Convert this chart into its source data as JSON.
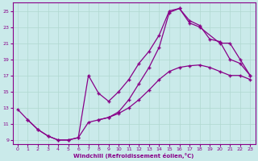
{
  "xlabel": "Windchill (Refroidissement éolien,°C)",
  "background_color": "#caeaea",
  "grid_color": "#b0d8d0",
  "line_color": "#880088",
  "xlim": [
    -0.5,
    23.5
  ],
  "ylim": [
    8.5,
    26
  ],
  "xticks": [
    0,
    1,
    2,
    3,
    4,
    5,
    6,
    7,
    8,
    9,
    10,
    11,
    12,
    13,
    14,
    15,
    16,
    17,
    18,
    19,
    20,
    21,
    22,
    23
  ],
  "yticks": [
    9,
    11,
    13,
    15,
    17,
    19,
    21,
    23,
    25
  ],
  "line1_x": [
    0,
    1,
    2,
    3,
    4,
    5,
    6,
    7,
    8,
    9,
    10,
    11,
    12,
    13,
    14,
    15,
    16,
    17,
    18,
    19,
    20,
    21,
    22,
    23
  ],
  "line1_y": [
    12.8,
    11.5,
    10.3,
    9.5,
    9.0,
    9.0,
    9.3,
    11.2,
    11.5,
    11.8,
    12.3,
    13.0,
    14.0,
    15.2,
    16.5,
    17.5,
    18.0,
    18.2,
    18.3,
    18.0,
    17.5,
    17.0,
    17.0,
    16.5
  ],
  "line2_x": [
    1,
    2,
    3,
    4,
    5,
    6,
    7,
    8,
    9,
    10,
    11,
    12,
    13,
    14,
    15,
    16,
    17,
    18,
    20,
    21,
    22,
    23
  ],
  "line2_y": [
    11.5,
    10.3,
    9.5,
    9.0,
    9.0,
    9.3,
    17.0,
    14.8,
    13.8,
    15.0,
    16.5,
    18.5,
    20.0,
    22.0,
    25.0,
    25.3,
    23.5,
    23.0,
    21.0,
    21.0,
    19.0,
    17.0
  ],
  "line3_x": [
    8,
    9,
    10,
    11,
    12,
    13,
    14,
    15,
    16,
    17,
    18,
    19,
    20,
    21,
    22,
    23
  ],
  "line3_y": [
    11.5,
    11.8,
    12.5,
    14.0,
    16.0,
    18.0,
    20.5,
    24.8,
    25.3,
    23.8,
    23.2,
    21.5,
    21.2,
    19.0,
    18.5,
    17.0
  ]
}
